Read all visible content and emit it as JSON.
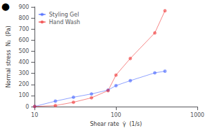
{
  "chart_data": {
    "type": "line",
    "x": [
      10,
      18,
      30,
      50,
      80,
      100,
      150,
      300,
      400
    ],
    "series": [
      {
        "name": "Styling Gel",
        "color": "#3355ff",
        "marker": "circle",
        "values": [
          2,
          50,
          85,
          115,
          150,
          190,
          235,
          305,
          320
        ]
      },
      {
        "name": "Hand Wash",
        "color": "#ee2222",
        "marker": "circle",
        "values": [
          2,
          10,
          40,
          80,
          145,
          285,
          435,
          665,
          865
        ]
      }
    ],
    "xlabel": "Shear rate  γ̇  (1/s)",
    "ylabel": "Normal stress  N₁  (Pa)",
    "xlim": [
      10,
      1000
    ],
    "ylim": [
      0,
      900
    ],
    "xticks": [
      10,
      100,
      1000
    ],
    "yticks": [
      0,
      100,
      200,
      300,
      400,
      500,
      600,
      700,
      800,
      900
    ],
    "log": "x",
    "grid": false,
    "legend": "upper left",
    "annotations": [
      "●"
    ]
  }
}
